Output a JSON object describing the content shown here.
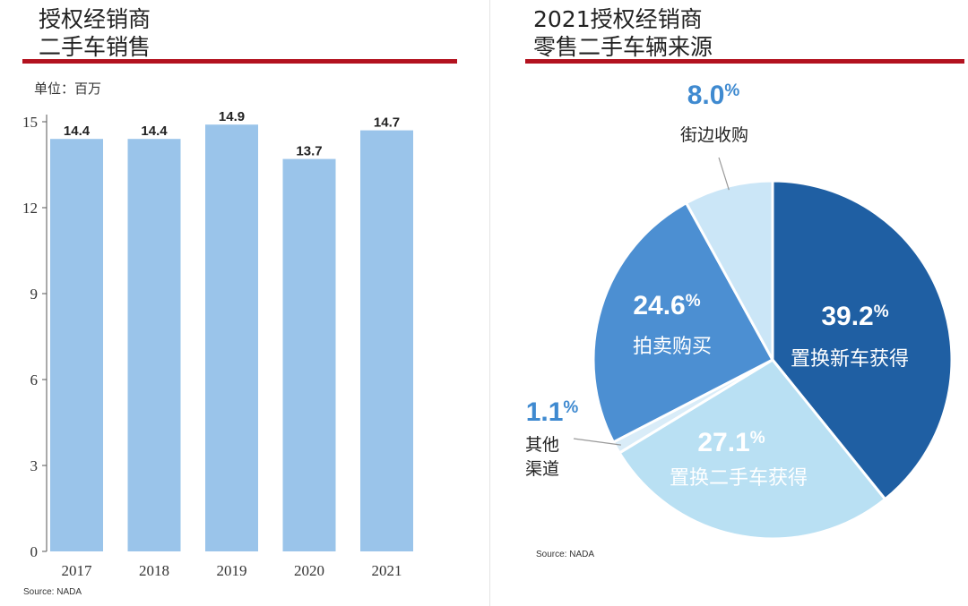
{
  "chart_data": [
    {
      "type": "bar",
      "title": "授权经销商\n二手车销售",
      "title_lines": [
        "授权经销商",
        "二手车销售"
      ],
      "unit_label": "单位：百万",
      "categories": [
        "2017",
        "2018",
        "2019",
        "2020",
        "2021"
      ],
      "values": [
        14.4,
        14.4,
        14.9,
        13.7,
        14.7
      ],
      "value_labels": [
        "14.4",
        "14.4",
        "14.9",
        "13.7",
        "14.7"
      ],
      "yticks": [
        "0",
        "3",
        "6",
        "9",
        "12",
        "15"
      ],
      "ylim": [
        0,
        15
      ],
      "grid": false,
      "bar_color": "#9ac4ea",
      "source": "Source: NADA"
    },
    {
      "type": "pie",
      "title": "2021授权经销商\n零售二手车辆来源",
      "title_lines": [
        "2021授权经销商",
        "零售二手车辆来源"
      ],
      "slices": [
        {
          "name": "置换新车获得",
          "value": 39.2,
          "label": "39.2",
          "color": "#1f5fa3"
        },
        {
          "name": "置换二手车获得",
          "value": 27.1,
          "label": "27.1",
          "color": "#b9e0f3"
        },
        {
          "name": "其他渠道",
          "name_lines": [
            "其他",
            "渠道"
          ],
          "value": 1.1,
          "label": "1.1",
          "color": "#d9ecf8"
        },
        {
          "name": "拍卖购买",
          "value": 24.6,
          "label": "24.6",
          "color": "#4c8fd2"
        },
        {
          "name": "街边收购",
          "value": 8.0,
          "label": "8.0",
          "color": "#cbe6f7"
        }
      ],
      "percent_sign": "%",
      "source": "Source: NADA"
    }
  ],
  "colors": {
    "accent_rule": "#b3121f",
    "divider": "#e4e4e4"
  }
}
